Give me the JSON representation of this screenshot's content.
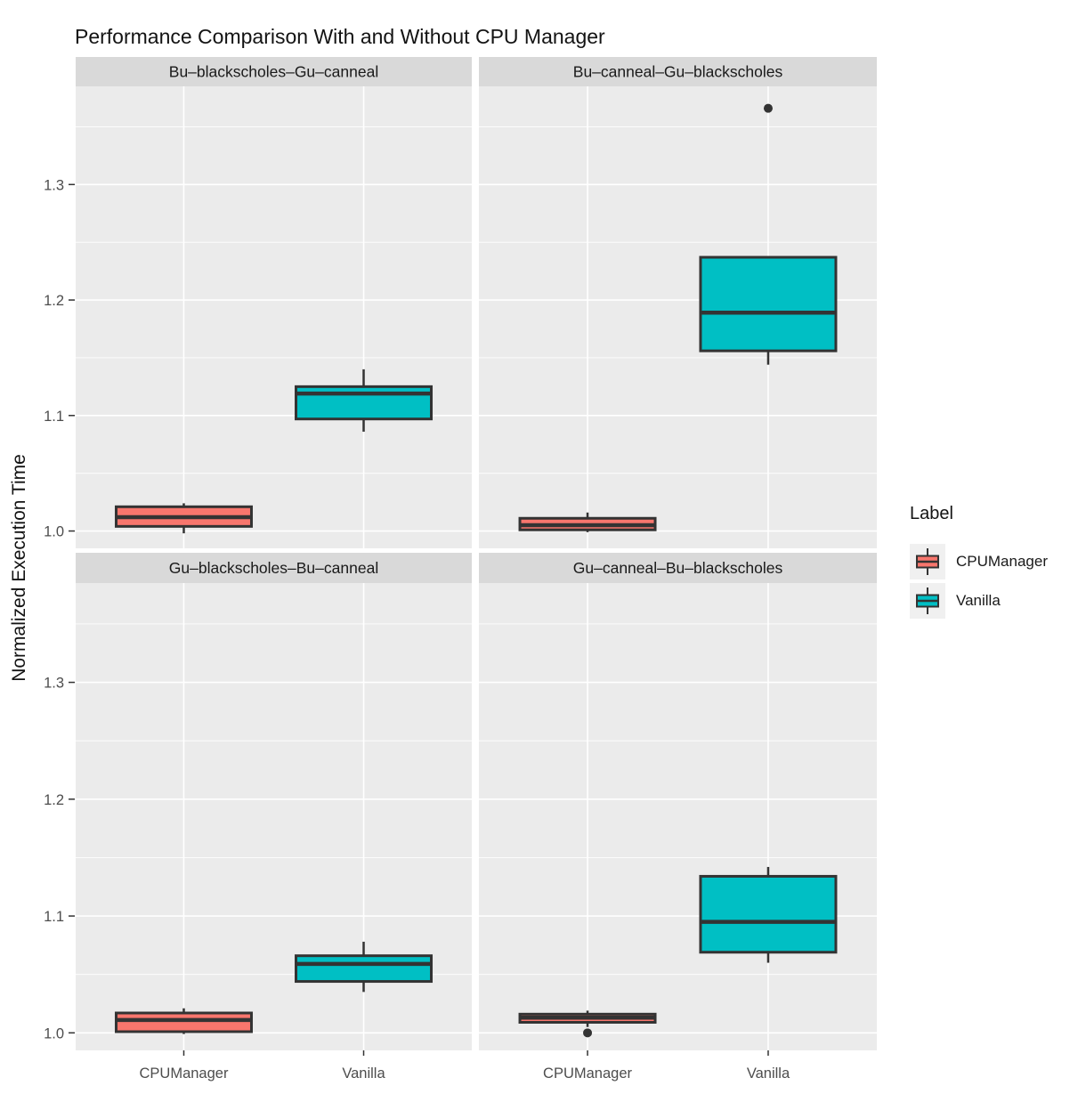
{
  "chart": {
    "title": "Performance Comparison With and Without CPU Manager",
    "ylabel": "Normalized Execution Time",
    "y_ticks": [
      "1.0",
      "1.1",
      "1.2",
      "1.3"
    ],
    "x_categories": [
      "CPUManager",
      "Vanilla"
    ]
  },
  "legend": {
    "title": "Label",
    "items": [
      {
        "label": "CPUManager",
        "color": "#F8766D"
      },
      {
        "label": "Vanilla",
        "color": "#00BFC4"
      }
    ]
  },
  "colors": {
    "panel_bg": "#EBEBEB",
    "strip_bg": "#D9D9D9",
    "grid": "#FFFFFF",
    "box_stroke": "#333333",
    "outlier": "#333333",
    "tick": "#333333",
    "axis_text": "#4D4D4D",
    "strip_text": "#1A1A1A",
    "legend_key_bg": "#F0F0F0"
  },
  "chart_data": {
    "type": "boxplot",
    "title": "Performance Comparison With and Without CPU Manager",
    "ylabel": "Normalized Execution Time",
    "xlabel": "",
    "ylim": [
      0.985,
      1.385
    ],
    "y_major_ticks": [
      1.0,
      1.1,
      1.2,
      1.3
    ],
    "y_minor_ticks": [
      1.05,
      1.15,
      1.25,
      1.35
    ],
    "grid": true,
    "legend_position": "right",
    "groups": [
      "CPUManager",
      "Vanilla"
    ],
    "series_colors": {
      "CPUManager": "#F8766D",
      "Vanilla": "#00BFC4"
    },
    "facets": [
      {
        "facet": "Bu–blackscholes–Gu–canneal",
        "boxes": [
          {
            "group": "CPUManager",
            "min": 0.998,
            "q1": 1.004,
            "median": 1.012,
            "q3": 1.021,
            "max": 1.024,
            "outliers": []
          },
          {
            "group": "Vanilla",
            "min": 1.086,
            "q1": 1.097,
            "median": 1.119,
            "q3": 1.125,
            "max": 1.14,
            "outliers": []
          }
        ]
      },
      {
        "facet": "Bu–canneal–Gu–blackscholes",
        "boxes": [
          {
            "group": "CPUManager",
            "min": 0.999,
            "q1": 1.001,
            "median": 1.005,
            "q3": 1.011,
            "max": 1.016,
            "outliers": []
          },
          {
            "group": "Vanilla",
            "min": 1.144,
            "q1": 1.156,
            "median": 1.189,
            "q3": 1.237,
            "max": 1.237,
            "outliers": [
              1.366
            ]
          }
        ]
      },
      {
        "facet": "Gu–blackscholes–Bu–canneal",
        "boxes": [
          {
            "group": "CPUManager",
            "min": 0.999,
            "q1": 1.001,
            "median": 1.011,
            "q3": 1.017,
            "max": 1.021,
            "outliers": []
          },
          {
            "group": "Vanilla",
            "min": 1.035,
            "q1": 1.044,
            "median": 1.059,
            "q3": 1.066,
            "max": 1.078,
            "outliers": []
          }
        ]
      },
      {
        "facet": "Gu–canneal–Bu–blackscholes",
        "boxes": [
          {
            "group": "CPUManager",
            "min": 1.005,
            "q1": 1.009,
            "median": 1.013,
            "q3": 1.016,
            "max": 1.019,
            "outliers": [
              1.0
            ]
          },
          {
            "group": "Vanilla",
            "min": 1.06,
            "q1": 1.069,
            "median": 1.095,
            "q3": 1.134,
            "max": 1.142,
            "outliers": []
          }
        ]
      }
    ]
  }
}
